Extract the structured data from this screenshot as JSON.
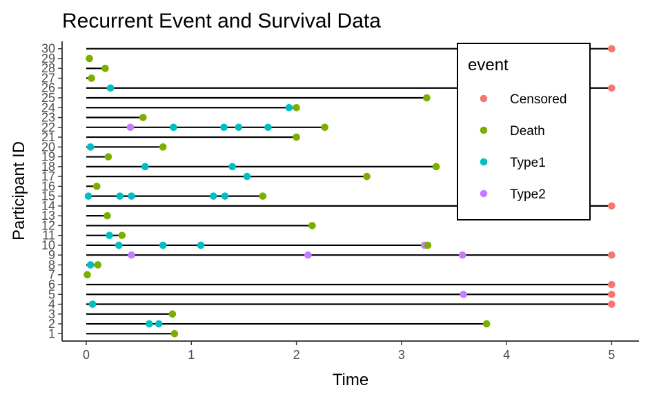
{
  "chart_data": {
    "type": "scatter",
    "title": "Recurrent Event and Survival Data",
    "xlabel": "Time",
    "ylabel": "Participant ID",
    "xlim": [
      -0.23,
      5.26
    ],
    "ylim": [
      0.25,
      30.75
    ],
    "x_ticks": [
      0,
      1,
      2,
      3,
      4,
      5
    ],
    "y_ticks": [
      1,
      2,
      3,
      4,
      5,
      6,
      7,
      8,
      9,
      10,
      11,
      12,
      13,
      14,
      15,
      16,
      17,
      18,
      19,
      20,
      21,
      22,
      23,
      24,
      25,
      26,
      27,
      28,
      29,
      30
    ],
    "grid": false,
    "legend": {
      "title": "event",
      "placement": "top-right",
      "entries": [
        "Censored",
        "Death",
        "Type1",
        "Type2"
      ]
    },
    "colors": {
      "Censored": "#F8766D",
      "Death": "#7CAE00",
      "Type1": "#00BFC4",
      "Type2": "#C77CFF",
      "segment": "#000000"
    },
    "segments": [
      {
        "id": 1,
        "end": 0.84
      },
      {
        "id": 2,
        "end": 3.81
      },
      {
        "id": 3,
        "end": 0.82
      },
      {
        "id": 4,
        "end": 5
      },
      {
        "id": 5,
        "end": 5
      },
      {
        "id": 6,
        "end": 5
      },
      {
        "id": 7,
        "end": 0.01
      },
      {
        "id": 8,
        "end": 0.11
      },
      {
        "id": 9,
        "end": 5
      },
      {
        "id": 10,
        "end": 3.25
      },
      {
        "id": 11,
        "end": 0.34
      },
      {
        "id": 12,
        "end": 2.15
      },
      {
        "id": 13,
        "end": 0.2
      },
      {
        "id": 14,
        "end": 5
      },
      {
        "id": 15,
        "end": 1.68
      },
      {
        "id": 16,
        "end": 0.1
      },
      {
        "id": 17,
        "end": 2.67
      },
      {
        "id": 18,
        "end": 3.33
      },
      {
        "id": 19,
        "end": 0.21
      },
      {
        "id": 20,
        "end": 0.73
      },
      {
        "id": 21,
        "end": 2.0
      },
      {
        "id": 22,
        "end": 2.27
      },
      {
        "id": 23,
        "end": 0.54
      },
      {
        "id": 24,
        "end": 2.0
      },
      {
        "id": 25,
        "end": 3.24
      },
      {
        "id": 26,
        "end": 5
      },
      {
        "id": 27,
        "end": 0.05
      },
      {
        "id": 28,
        "end": 0.18
      },
      {
        "id": 29,
        "end": 0.03
      },
      {
        "id": 30,
        "end": 5
      }
    ],
    "points": [
      {
        "id": 1,
        "time": 0.84,
        "event": "Death"
      },
      {
        "id": 2,
        "time": 0.6,
        "event": "Type1"
      },
      {
        "id": 2,
        "time": 0.69,
        "event": "Type1"
      },
      {
        "id": 2,
        "time": 3.81,
        "event": "Death"
      },
      {
        "id": 3,
        "time": 0.82,
        "event": "Death"
      },
      {
        "id": 4,
        "time": 0.06,
        "event": "Type1"
      },
      {
        "id": 4,
        "time": 5,
        "event": "Censored"
      },
      {
        "id": 5,
        "time": 3.59,
        "event": "Type2"
      },
      {
        "id": 5,
        "time": 5,
        "event": "Censored"
      },
      {
        "id": 6,
        "time": 5,
        "event": "Censored"
      },
      {
        "id": 7,
        "time": 0.01,
        "event": "Death"
      },
      {
        "id": 8,
        "time": 0.04,
        "event": "Type1"
      },
      {
        "id": 8,
        "time": 0.11,
        "event": "Death"
      },
      {
        "id": 9,
        "time": 0.43,
        "event": "Type2"
      },
      {
        "id": 9,
        "time": 2.11,
        "event": "Type2"
      },
      {
        "id": 9,
        "time": 3.58,
        "event": "Type2"
      },
      {
        "id": 9,
        "time": 5,
        "event": "Censored"
      },
      {
        "id": 10,
        "time": 0.31,
        "event": "Type1"
      },
      {
        "id": 10,
        "time": 0.73,
        "event": "Type1"
      },
      {
        "id": 10,
        "time": 1.09,
        "event": "Type1"
      },
      {
        "id": 10,
        "time": 3.22,
        "event": "Type2"
      },
      {
        "id": 10,
        "time": 3.25,
        "event": "Death"
      },
      {
        "id": 11,
        "time": 0.22,
        "event": "Type1"
      },
      {
        "id": 11,
        "time": 0.34,
        "event": "Death"
      },
      {
        "id": 12,
        "time": 2.15,
        "event": "Death"
      },
      {
        "id": 13,
        "time": 0.2,
        "event": "Death"
      },
      {
        "id": 14,
        "time": 5,
        "event": "Censored"
      },
      {
        "id": 15,
        "time": 0.02,
        "event": "Type1"
      },
      {
        "id": 15,
        "time": 0.32,
        "event": "Type1"
      },
      {
        "id": 15,
        "time": 0.43,
        "event": "Type1"
      },
      {
        "id": 15,
        "time": 1.21,
        "event": "Type1"
      },
      {
        "id": 15,
        "time": 1.32,
        "event": "Type1"
      },
      {
        "id": 15,
        "time": 1.68,
        "event": "Death"
      },
      {
        "id": 16,
        "time": 0.1,
        "event": "Death"
      },
      {
        "id": 17,
        "time": 1.53,
        "event": "Type1"
      },
      {
        "id": 17,
        "time": 2.67,
        "event": "Death"
      },
      {
        "id": 18,
        "time": 0.56,
        "event": "Type1"
      },
      {
        "id": 18,
        "time": 1.39,
        "event": "Type1"
      },
      {
        "id": 18,
        "time": 3.33,
        "event": "Death"
      },
      {
        "id": 19,
        "time": 0.21,
        "event": "Death"
      },
      {
        "id": 20,
        "time": 0.04,
        "event": "Type1"
      },
      {
        "id": 20,
        "time": 0.73,
        "event": "Death"
      },
      {
        "id": 21,
        "time": 2.0,
        "event": "Death"
      },
      {
        "id": 22,
        "time": 0.42,
        "event": "Type2"
      },
      {
        "id": 22,
        "time": 0.83,
        "event": "Type1"
      },
      {
        "id": 22,
        "time": 1.31,
        "event": "Type1"
      },
      {
        "id": 22,
        "time": 1.45,
        "event": "Type1"
      },
      {
        "id": 22,
        "time": 1.73,
        "event": "Type1"
      },
      {
        "id": 22,
        "time": 2.27,
        "event": "Death"
      },
      {
        "id": 23,
        "time": 0.54,
        "event": "Death"
      },
      {
        "id": 24,
        "time": 1.93,
        "event": "Type1"
      },
      {
        "id": 24,
        "time": 2.0,
        "event": "Death"
      },
      {
        "id": 25,
        "time": 3.24,
        "event": "Death"
      },
      {
        "id": 26,
        "time": 0.23,
        "event": "Type1"
      },
      {
        "id": 26,
        "time": 5,
        "event": "Censored"
      },
      {
        "id": 27,
        "time": 0.05,
        "event": "Death"
      },
      {
        "id": 28,
        "time": 0.18,
        "event": "Death"
      },
      {
        "id": 29,
        "time": 0.03,
        "event": "Death"
      },
      {
        "id": 30,
        "time": 5,
        "event": "Censored"
      }
    ]
  }
}
